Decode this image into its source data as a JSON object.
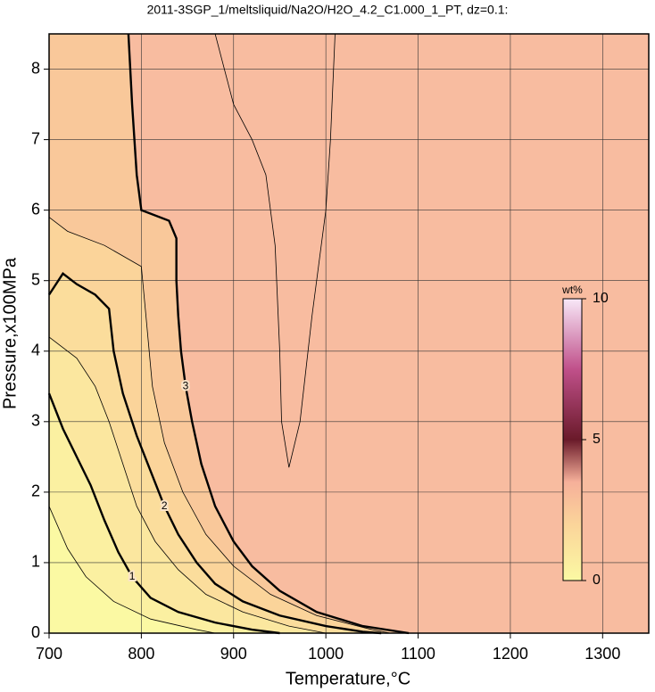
{
  "chart_data": {
    "type": "contour",
    "title": "2011-3SGP_1/meltsliquid/Na2O/H2O_4.2_C1.000_1_PT, dz=0.1:",
    "x_label": "Temperature,°C",
    "y_label": "Pressure,x100MPa",
    "xlim": [
      700,
      1350
    ],
    "ylim": [
      0,
      8.5
    ],
    "xticks": [
      700,
      800,
      900,
      1000,
      1100,
      1200,
      1300
    ],
    "yticks": [
      0,
      1,
      2,
      3,
      4,
      5,
      6,
      7,
      8
    ],
    "grid": true,
    "contours": [
      {
        "level": 0.5,
        "x": [
          700,
          720,
          740,
          770,
          810,
          860,
          880
        ],
        "y": [
          1.8,
          1.2,
          0.8,
          0.45,
          0.2,
          0.05,
          0
        ]
      },
      {
        "level": 1,
        "x": [
          700,
          715,
          730,
          745,
          760,
          775,
          790,
          810,
          840,
          880,
          920,
          950
        ],
        "y": [
          3.4,
          2.9,
          2.5,
          2.1,
          1.6,
          1.15,
          0.8,
          0.5,
          0.3,
          0.15,
          0.05,
          0
        ]
      },
      {
        "level": 1.5,
        "x": [
          700,
          730,
          750,
          765,
          780,
          795,
          815,
          840,
          870,
          910,
          960,
          1000
        ],
        "y": [
          4.2,
          3.9,
          3.5,
          3.0,
          2.4,
          1.8,
          1.3,
          0.9,
          0.55,
          0.3,
          0.1,
          0
        ]
      },
      {
        "level": 2,
        "x": [
          700,
          715,
          730,
          750,
          765,
          770,
          780,
          795,
          810,
          825,
          840,
          860,
          880,
          910,
          950,
          1000,
          1040,
          1060
        ],
        "y": [
          4.8,
          5.1,
          4.95,
          4.8,
          4.6,
          4.0,
          3.4,
          2.8,
          2.3,
          1.8,
          1.4,
          1.0,
          0.7,
          0.45,
          0.25,
          0.1,
          0.02,
          0
        ]
      },
      {
        "level": 2.5,
        "x": [
          700,
          720,
          760,
          800,
          805,
          812,
          825,
          845,
          870,
          900,
          940,
          990,
          1050,
          1070
        ],
        "y": [
          5.9,
          5.7,
          5.5,
          5.2,
          4.5,
          3.5,
          2.7,
          2.0,
          1.4,
          0.95,
          0.55,
          0.25,
          0.05,
          0
        ]
      },
      {
        "level": 3,
        "x": [
          786,
          790,
          795,
          800,
          830,
          838,
          838,
          840,
          843,
          848,
          855,
          865,
          880,
          900,
          920,
          950,
          990,
          1040,
          1090
        ],
        "y": [
          8.5,
          7.5,
          6.5,
          6.0,
          5.85,
          5.6,
          5.0,
          4.5,
          4.0,
          3.5,
          3.0,
          2.4,
          1.8,
          1.3,
          0.95,
          0.6,
          0.3,
          0.1,
          0
        ]
      },
      {
        "level": 3.5,
        "x": [
          880,
          900,
          920,
          935,
          945,
          950,
          952,
          960,
          972,
          985,
          1000,
          1005,
          1010
        ],
        "y": [
          8.5,
          7.5,
          7.0,
          6.5,
          5.5,
          4.0,
          3.0,
          2.35,
          3.0,
          4.5,
          6.0,
          7.0,
          8.5
        ]
      }
    ],
    "colorbar": {
      "label": "wt%",
      "lim": [
        0,
        10
      ],
      "ticks": [
        0,
        5,
        10
      ],
      "colormap": [
        [
          0,
          "#fbf9a3"
        ],
        [
          2,
          "#fbd49a"
        ],
        [
          3.5,
          "#f6b09a"
        ],
        [
          5,
          "#6a1a2a"
        ],
        [
          7.5,
          "#c0508a"
        ],
        [
          10,
          "#f8e8f8"
        ]
      ]
    }
  }
}
